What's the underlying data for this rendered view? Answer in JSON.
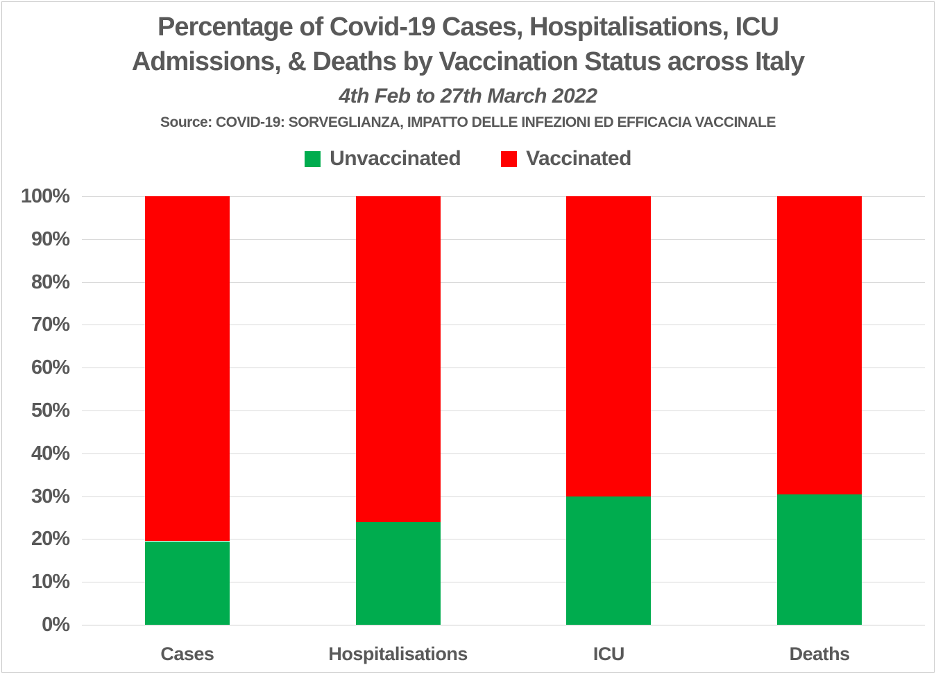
{
  "title": {
    "line1": "Percentage of Covid-19 Cases, Hospitalisations, ICU",
    "line2": "Admissions, & Deaths by Vaccination Status across Italy",
    "subtitle": "4th Feb to 27th March 2022",
    "source": "Source: COVID-19: SORVEGLIANZA, IMPATTO DELLE INFEZIONI ED EFFICACIA VACCINALE"
  },
  "colors": {
    "unvaccinated_green": "#00AC4E",
    "vaccinated_red": "#FF0000",
    "text_gray": "#595959",
    "gridline_gray": "#D9D9D9"
  },
  "legend": {
    "items": [
      {
        "label": "Unvaccinated",
        "color": "#00AC4E"
      },
      {
        "label": "Vaccinated",
        "color": "#FF0000"
      }
    ],
    "position": "top-center"
  },
  "chart_data": {
    "type": "bar",
    "stacked": true,
    "orientation": "vertical",
    "title": "Percentage of Covid-19 Cases, Hospitalisations, ICU Admissions, & Deaths by Vaccination Status across Italy",
    "subtitle": "4th Feb to 27th March 2022",
    "source": "Source: COVID-19: SORVEGLIANZA, IMPATTO DELLE INFEZIONI ED EFFICACIA VACCINALE",
    "categories": [
      "Cases",
      "Hospitalisations",
      "ICU",
      "Deaths"
    ],
    "series": [
      {
        "name": "Unvaccinated",
        "color": "#00AC4E",
        "values": [
          19.5,
          24,
          30,
          30.4
        ]
      },
      {
        "name": "Vaccinated",
        "color": "#FF0000",
        "values": [
          80.5,
          76,
          70,
          69.6
        ]
      }
    ],
    "xlabel": "",
    "ylabel": "",
    "ylim": [
      0,
      100
    ],
    "ytick_labels": [
      "100%",
      "90%",
      "80%",
      "70%",
      "60%",
      "50%",
      "40%",
      "30%",
      "20%",
      "10%",
      "0%"
    ],
    "grid": true,
    "legend_position": "top"
  }
}
